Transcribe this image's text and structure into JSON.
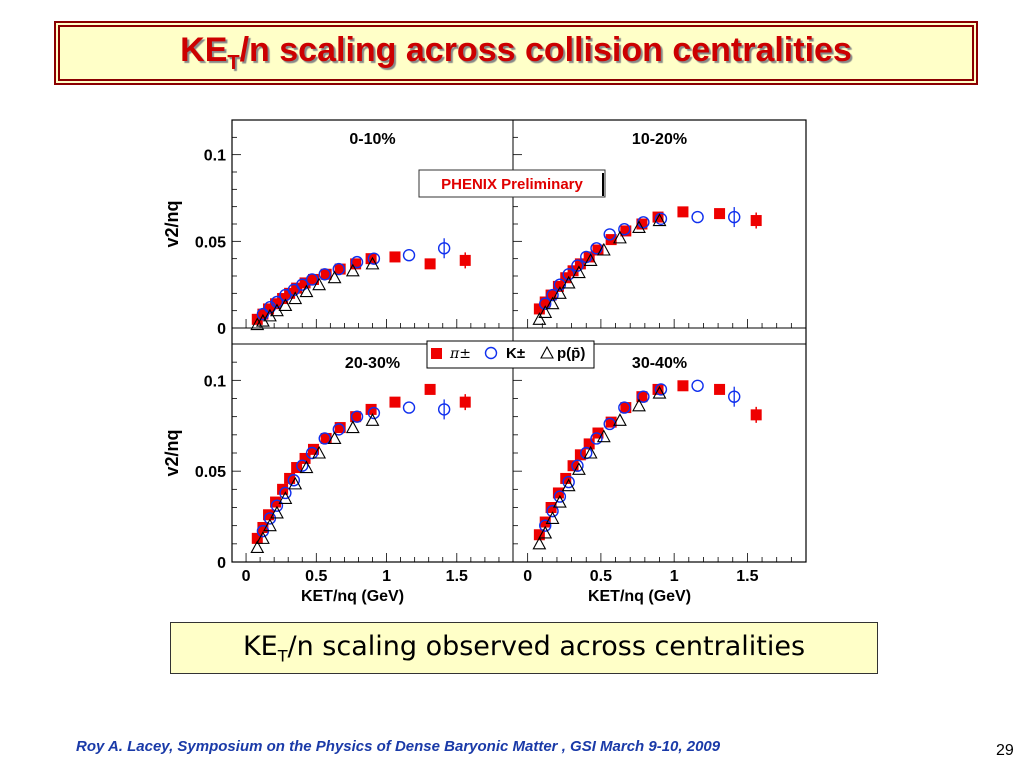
{
  "slide": {
    "title_prefix": "KE",
    "title_sub": "T",
    "title_rest": "/n scaling across collision centralities",
    "caption_prefix": "KE",
    "caption_sub": "T",
    "caption_rest": "/n  scaling observed across centralities",
    "footer": "Roy A. Lacey,  Symposium on the  Physics of Dense Baryonic Matter ,  GSI  March 9-10,  2009",
    "page_number": "29"
  },
  "chart_data": {
    "type": "scatter",
    "ylabel": "v2/nq",
    "xlabel": "KET/nq (GeV)",
    "preliminary_label": "PHENIX Preliminary",
    "legend_entries": [
      "π±",
      "K±",
      "p(p̄)"
    ],
    "colors": {
      "pion": "#ee0000",
      "kaon": "#1030ee",
      "proton": "#000000",
      "preliminary": "#e00000"
    },
    "xlim": [
      -0.1,
      1.9
    ],
    "ylim_top": [
      0,
      0.12
    ],
    "ylim_bottom": [
      0,
      0.12
    ],
    "xticks": [
      "0",
      "0.5",
      "1",
      "1.5"
    ],
    "yticks": [
      "0",
      "0.05",
      "0.1"
    ],
    "panels": [
      {
        "label": "0-10%",
        "series": [
          {
            "name": "π±",
            "marker": "square",
            "points": [
              [
                0.08,
                0.005
              ],
              [
                0.12,
                0.008
              ],
              [
                0.16,
                0.011
              ],
              [
                0.21,
                0.014
              ],
              [
                0.26,
                0.017
              ],
              [
                0.31,
                0.02
              ],
              [
                0.36,
                0.023
              ],
              [
                0.42,
                0.026
              ],
              [
                0.48,
                0.028
              ],
              [
                0.57,
                0.031
              ],
              [
                0.67,
                0.034
              ],
              [
                0.78,
                0.037
              ],
              [
                0.89,
                0.04
              ],
              [
                1.06,
                0.041
              ],
              [
                1.31,
                0.037
              ],
              [
                1.56,
                0.039
              ]
            ]
          },
          {
            "name": "K±",
            "marker": "circle",
            "points": [
              [
                0.12,
                0.008
              ],
              [
                0.17,
                0.012
              ],
              [
                0.22,
                0.015
              ],
              [
                0.28,
                0.019
              ],
              [
                0.34,
                0.022
              ],
              [
                0.4,
                0.025
              ],
              [
                0.47,
                0.028
              ],
              [
                0.56,
                0.031
              ],
              [
                0.66,
                0.034
              ],
              [
                0.79,
                0.038
              ],
              [
                0.91,
                0.04
              ],
              [
                1.16,
                0.042
              ],
              [
                1.41,
                0.046
              ]
            ]
          },
          {
            "name": "p(p̄)",
            "marker": "triangle",
            "points": [
              [
                0.08,
                0.002
              ],
              [
                0.12,
                0.004
              ],
              [
                0.17,
                0.007
              ],
              [
                0.22,
                0.01
              ],
              [
                0.28,
                0.013
              ],
              [
                0.35,
                0.017
              ],
              [
                0.43,
                0.021
              ],
              [
                0.52,
                0.025
              ],
              [
                0.63,
                0.029
              ],
              [
                0.76,
                0.033
              ],
              [
                0.9,
                0.037
              ]
            ]
          }
        ]
      },
      {
        "label": "10-20%",
        "series": [
          {
            "name": "π±",
            "marker": "square",
            "points": [
              [
                0.08,
                0.011
              ],
              [
                0.12,
                0.015
              ],
              [
                0.16,
                0.019
              ],
              [
                0.21,
                0.024
              ],
              [
                0.26,
                0.029
              ],
              [
                0.31,
                0.033
              ],
              [
                0.36,
                0.037
              ],
              [
                0.42,
                0.041
              ],
              [
                0.48,
                0.045
              ],
              [
                0.57,
                0.051
              ],
              [
                0.67,
                0.056
              ],
              [
                0.78,
                0.06
              ],
              [
                0.89,
                0.064
              ],
              [
                1.06,
                0.067
              ],
              [
                1.31,
                0.066
              ],
              [
                1.56,
                0.062
              ]
            ]
          },
          {
            "name": "K±",
            "marker": "circle",
            "points": [
              [
                0.12,
                0.014
              ],
              [
                0.17,
                0.019
              ],
              [
                0.22,
                0.025
              ],
              [
                0.28,
                0.031
              ],
              [
                0.34,
                0.036
              ],
              [
                0.4,
                0.041
              ],
              [
                0.47,
                0.046
              ],
              [
                0.56,
                0.054
              ],
              [
                0.66,
                0.057
              ],
              [
                0.79,
                0.061
              ],
              [
                0.91,
                0.063
              ],
              [
                1.16,
                0.064
              ],
              [
                1.41,
                0.064
              ]
            ]
          },
          {
            "name": "p(p̄)",
            "marker": "triangle",
            "points": [
              [
                0.08,
                0.005
              ],
              [
                0.12,
                0.009
              ],
              [
                0.17,
                0.014
              ],
              [
                0.22,
                0.02
              ],
              [
                0.28,
                0.026
              ],
              [
                0.35,
                0.032
              ],
              [
                0.43,
                0.039
              ],
              [
                0.52,
                0.045
              ],
              [
                0.63,
                0.052
              ],
              [
                0.76,
                0.058
              ],
              [
                0.9,
                0.062
              ]
            ]
          }
        ]
      },
      {
        "label": "20-30%",
        "series": [
          {
            "name": "π±",
            "marker": "square",
            "points": [
              [
                0.08,
                0.013
              ],
              [
                0.12,
                0.019
              ],
              [
                0.16,
                0.026
              ],
              [
                0.21,
                0.033
              ],
              [
                0.26,
                0.04
              ],
              [
                0.31,
                0.046
              ],
              [
                0.36,
                0.052
              ],
              [
                0.42,
                0.057
              ],
              [
                0.48,
                0.062
              ],
              [
                0.57,
                0.068
              ],
              [
                0.67,
                0.074
              ],
              [
                0.78,
                0.08
              ],
              [
                0.89,
                0.084
              ],
              [
                1.06,
                0.088
              ],
              [
                1.31,
                0.095
              ],
              [
                1.56,
                0.088
              ]
            ]
          },
          {
            "name": "K±",
            "marker": "circle",
            "points": [
              [
                0.12,
                0.017
              ],
              [
                0.17,
                0.024
              ],
              [
                0.22,
                0.031
              ],
              [
                0.28,
                0.038
              ],
              [
                0.34,
                0.045
              ],
              [
                0.4,
                0.053
              ],
              [
                0.47,
                0.06
              ],
              [
                0.56,
                0.068
              ],
              [
                0.66,
                0.073
              ],
              [
                0.79,
                0.08
              ],
              [
                0.91,
                0.082
              ],
              [
                1.16,
                0.085
              ],
              [
                1.41,
                0.084
              ]
            ]
          },
          {
            "name": "p(p̄)",
            "marker": "triangle",
            "points": [
              [
                0.08,
                0.008
              ],
              [
                0.12,
                0.013
              ],
              [
                0.17,
                0.02
              ],
              [
                0.22,
                0.027
              ],
              [
                0.28,
                0.035
              ],
              [
                0.35,
                0.043
              ],
              [
                0.43,
                0.052
              ],
              [
                0.52,
                0.06
              ],
              [
                0.63,
                0.068
              ],
              [
                0.76,
                0.074
              ],
              [
                0.9,
                0.078
              ]
            ]
          }
        ]
      },
      {
        "label": "30-40%",
        "series": [
          {
            "name": "π±",
            "marker": "square",
            "points": [
              [
                0.08,
                0.015
              ],
              [
                0.12,
                0.022
              ],
              [
                0.16,
                0.03
              ],
              [
                0.21,
                0.038
              ],
              [
                0.26,
                0.046
              ],
              [
                0.31,
                0.053
              ],
              [
                0.36,
                0.059
              ],
              [
                0.42,
                0.065
              ],
              [
                0.48,
                0.071
              ],
              [
                0.57,
                0.077
              ],
              [
                0.67,
                0.085
              ],
              [
                0.78,
                0.091
              ],
              [
                0.89,
                0.095
              ],
              [
                1.06,
                0.097
              ],
              [
                1.31,
                0.095
              ],
              [
                1.56,
                0.081
              ]
            ]
          },
          {
            "name": "K±",
            "marker": "circle",
            "points": [
              [
                0.12,
                0.02
              ],
              [
                0.17,
                0.028
              ],
              [
                0.22,
                0.036
              ],
              [
                0.28,
                0.044
              ],
              [
                0.34,
                0.053
              ],
              [
                0.4,
                0.06
              ],
              [
                0.47,
                0.068
              ],
              [
                0.56,
                0.076
              ],
              [
                0.66,
                0.085
              ],
              [
                0.79,
                0.091
              ],
              [
                0.91,
                0.095
              ],
              [
                1.16,
                0.097
              ],
              [
                1.41,
                0.091
              ]
            ]
          },
          {
            "name": "p(p̄)",
            "marker": "triangle",
            "points": [
              [
                0.08,
                0.01
              ],
              [
                0.12,
                0.016
              ],
              [
                0.17,
                0.024
              ],
              [
                0.22,
                0.033
              ],
              [
                0.28,
                0.042
              ],
              [
                0.35,
                0.051
              ],
              [
                0.43,
                0.06
              ],
              [
                0.52,
                0.069
              ],
              [
                0.63,
                0.078
              ],
              [
                0.76,
                0.086
              ],
              [
                0.9,
                0.093
              ]
            ]
          }
        ]
      }
    ]
  }
}
